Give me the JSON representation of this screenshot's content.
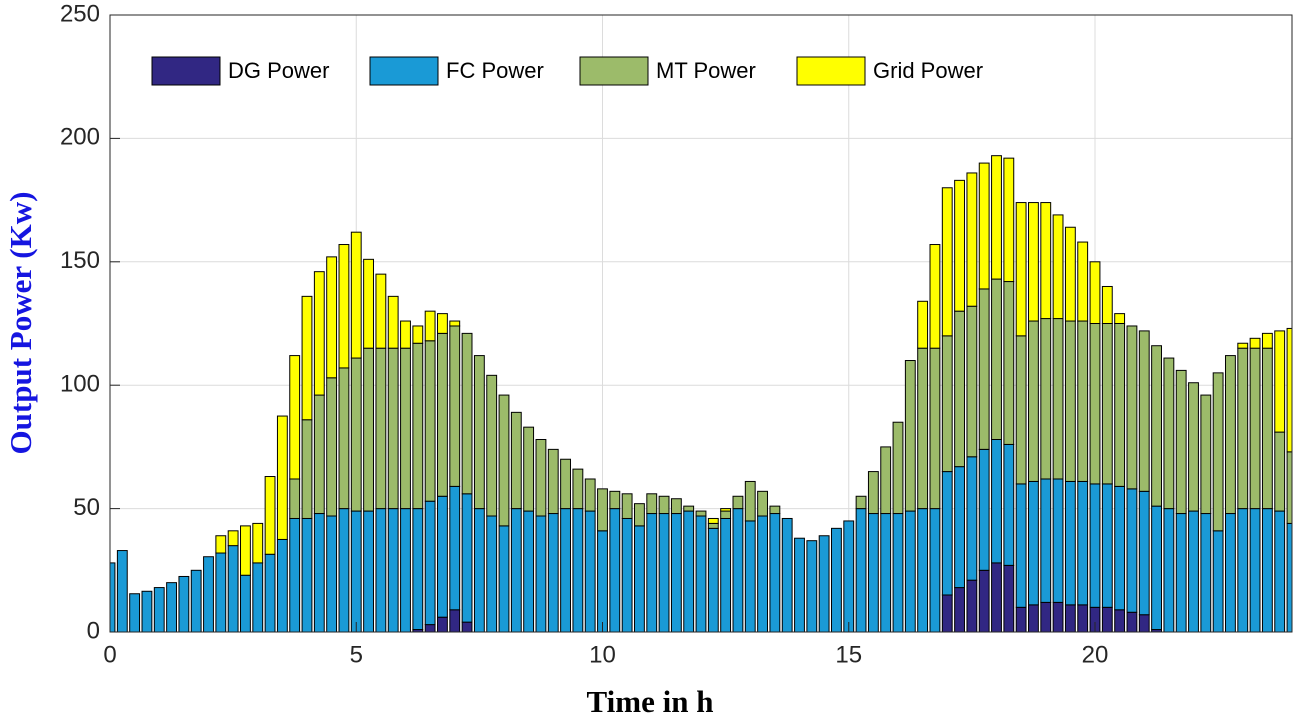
{
  "chart_data": {
    "type": "stacked_bar",
    "xlabel": "Time in h",
    "ylabel": "Output Power (Kw)",
    "x": [
      0,
      0.25,
      0.5,
      0.75,
      1,
      1.25,
      1.5,
      1.75,
      2,
      2.25,
      2.5,
      2.75,
      3,
      3.25,
      3.5,
      3.75,
      4,
      4.25,
      4.5,
      4.75,
      5,
      5.25,
      5.5,
      5.75,
      6,
      6.25,
      6.5,
      6.75,
      7,
      7.25,
      7.5,
      7.75,
      8,
      8.25,
      8.5,
      8.75,
      9,
      9.25,
      9.5,
      9.75,
      10,
      10.25,
      10.5,
      10.75,
      11,
      11.25,
      11.5,
      11.75,
      12,
      12.25,
      12.5,
      12.75,
      13,
      13.25,
      13.5,
      13.75,
      14,
      14.25,
      14.5,
      14.75,
      15,
      15.25,
      15.5,
      15.75,
      16,
      16.25,
      16.5,
      16.75,
      17,
      17.25,
      17.5,
      17.75,
      18,
      18.25,
      18.5,
      18.75,
      19,
      19.25,
      19.5,
      19.75,
      20,
      20.25,
      20.5,
      20.75,
      21,
      21.25,
      21.5,
      21.75,
      22,
      22.25,
      22.5,
      22.75,
      23,
      23.25,
      23.5,
      23.75,
      24
    ],
    "series": [
      {
        "name": "DG Power",
        "color": "#312783",
        "values": [
          0,
          0,
          0,
          0,
          0,
          0,
          0,
          0,
          0,
          0,
          0,
          0,
          0,
          0,
          0,
          0,
          0,
          0,
          0,
          0,
          0,
          0,
          0,
          0,
          0,
          1,
          3,
          6,
          9,
          4,
          0,
          0,
          0,
          0,
          0,
          0,
          0,
          0,
          0,
          0,
          0,
          0,
          0,
          0,
          0,
          0,
          0,
          0,
          0,
          0,
          0,
          0,
          0,
          0,
          0,
          0,
          0,
          0,
          0,
          0,
          0,
          0,
          0,
          0,
          0,
          0,
          0,
          0,
          15,
          18,
          21,
          25,
          28,
          27,
          10,
          11,
          12,
          12,
          11,
          11,
          10,
          10,
          9,
          8,
          7,
          1,
          0,
          0,
          0,
          0,
          0,
          0,
          0,
          0,
          0,
          0,
          0
        ]
      },
      {
        "name": "FC Power",
        "color": "#1a9ad6",
        "values": [
          28,
          33,
          15.5,
          16.5,
          18,
          20,
          22.5,
          25,
          30.5,
          32,
          35,
          23,
          28,
          31.5,
          37.5,
          46,
          46,
          48,
          47,
          50,
          49,
          49,
          50,
          50,
          50,
          49,
          50,
          49,
          50,
          52,
          50,
          47,
          43,
          50,
          49,
          47,
          48,
          50,
          50,
          49,
          41,
          50,
          46,
          43,
          48,
          48,
          48,
          49,
          47,
          42,
          46,
          50,
          45,
          47,
          48,
          46,
          38,
          37,
          39,
          42,
          45,
          50,
          48,
          48,
          48,
          49,
          50,
          50,
          50,
          49,
          50,
          49,
          50,
          49,
          50,
          50,
          50,
          50,
          50,
          50,
          50,
          50,
          50,
          50,
          50,
          50,
          50,
          48,
          49,
          48,
          41,
          48,
          50,
          50,
          50,
          49,
          44
        ]
      },
      {
        "name": "MT Power",
        "color": "#9cbb6a",
        "values": [
          0,
          0,
          0,
          0,
          0,
          0,
          0,
          0,
          0,
          0,
          0,
          0,
          0,
          0,
          0,
          16,
          40,
          48,
          56,
          57,
          62,
          66,
          65,
          65,
          65,
          67,
          65,
          66,
          65,
          65,
          62,
          57,
          53,
          39,
          34,
          31,
          26,
          20,
          16,
          13,
          17,
          7,
          10,
          9,
          8,
          7,
          6,
          2,
          2,
          2,
          3,
          5,
          16,
          10,
          3,
          0,
          0,
          0,
          0,
          0,
          0,
          5,
          17,
          27,
          37,
          61,
          65,
          65,
          55,
          63,
          61,
          65,
          65,
          66,
          60,
          65,
          65,
          65,
          65,
          65,
          65,
          65,
          66,
          66,
          65,
          65,
          61,
          58,
          52,
          48,
          64,
          64,
          65,
          65,
          65,
          32,
          29
        ]
      },
      {
        "name": "Grid Power",
        "color": "#ffff00",
        "values": [
          0,
          0,
          0,
          0,
          0,
          0,
          0,
          0,
          0,
          7,
          6,
          20,
          16,
          31.5,
          50,
          50,
          50,
          50,
          49,
          50,
          51,
          36,
          30,
          21,
          11,
          7,
          12,
          8,
          2,
          0,
          0,
          0,
          0,
          0,
          0,
          0,
          0,
          0,
          0,
          0,
          0,
          0,
          0,
          0,
          0,
          0,
          0,
          0,
          0,
          2,
          1,
          0,
          0,
          0,
          0,
          0,
          0,
          0,
          0,
          0,
          0,
          0,
          0,
          0,
          0,
          0,
          19,
          42,
          60,
          53,
          54,
          51,
          50,
          50,
          54,
          48,
          47,
          42,
          38,
          32,
          25,
          15,
          4,
          0,
          0,
          0,
          0,
          0,
          0,
          0,
          0,
          0,
          2,
          4,
          6,
          41,
          50
        ]
      }
    ],
    "xlim": [
      0,
      24
    ],
    "xticks": [
      0,
      5,
      10,
      15,
      20
    ],
    "ylim": [
      0,
      250
    ],
    "yticks": [
      0,
      50,
      100,
      150,
      200,
      250
    ],
    "grid": true,
    "legend": "top-left"
  }
}
